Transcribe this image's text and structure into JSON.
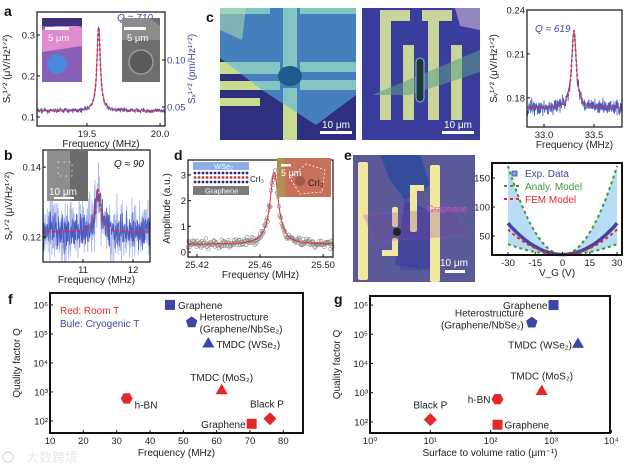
{
  "panel_letters": [
    "a",
    "b",
    "c",
    "d",
    "e",
    "f",
    "g"
  ],
  "insets": {
    "a_left_scale": "5 μm",
    "a_right_scale": "5 μm",
    "b_scale": "10 μm",
    "c_left_scale": "10 μm",
    "c_mid_scale": "10 μm",
    "d_schematic_top": "WSe₂",
    "d_schematic_mid": "CrI₃",
    "d_schematic_bottom": "Graphene",
    "d_photo_scale": "5 μm",
    "d_photo_label": "CrI₃",
    "e_graphene": "Graphene",
    "e_mos2": "MoS₂",
    "e_scale": "10 μm"
  },
  "legend_f": {
    "red": "Red: Room T",
    "blue": "Bule: Cryogenic T"
  },
  "legend_e": [
    "Exp. Data",
    "Analy. Model",
    "FEM Model"
  ],
  "colors": {
    "blue": "#3b47a3",
    "red": "#e2282b",
    "fit": "#e0303a",
    "green": "#3a9a3a",
    "shade": "#a6d3f2",
    "noise": "#4a5cc4"
  },
  "watermark": "大数跨境",
  "chart_data": [
    {
      "panel": "a",
      "type": "line",
      "xlim": [
        19.158,
        20.034
      ],
      "ylim": [
        0.078,
        0.356
      ],
      "xticks": [
        19.5,
        20.0
      ],
      "xticklabels": [
        "19.5",
        "20.0"
      ],
      "yticks": [
        0.1,
        0.2,
        0.3
      ],
      "yticklabels": [
        "0.1",
        "0.2",
        "0.3"
      ],
      "y2lim": [
        0.0298,
        0.151
      ],
      "y2ticks": [
        0.05,
        0.1
      ],
      "y2ticklabels": [
        "0.05",
        "0.10"
      ],
      "xlabel": "Frequency (MHz)",
      "ylabel": "Sᵥ¹ᐟ² (μV/Hz¹ᐟ²)",
      "y2label": "Sₓ¹ᐟ² (pm/Hz¹ᐟ²)",
      "annotation": "Q = 710",
      "resonance": {
        "center": 19.58,
        "fwhm": 0.0276,
        "baseline": 0.115,
        "peak": 0.32,
        "noise": 0.003
      }
    },
    {
      "panel": "c",
      "type": "line",
      "xlim": [
        32.83,
        33.78
      ],
      "ylim": [
        0.16,
        0.24
      ],
      "xticks": [
        33.0,
        33.5
      ],
      "xticklabels": [
        "33.0",
        "33.5"
      ],
      "yticks": [
        0.18,
        0.21,
        0.24
      ],
      "yticklabels": [
        "0.18",
        "0.21",
        "0.24"
      ],
      "xlabel": "Frequency (MHz)",
      "ylabel": "Sᵥ¹ᐟ² (μV/Hz¹ᐟ²)",
      "annotation": "Q ≈ 619",
      "resonance": {
        "center": 33.3,
        "fwhm": 0.054,
        "baseline": 0.173,
        "peak": 0.226,
        "noise": 0.0025
      }
    },
    {
      "panel": "b",
      "type": "line",
      "xlim": [
        10.2,
        12.34
      ],
      "ylim": [
        0.1129,
        0.1449
      ],
      "xticks": [
        11,
        12
      ],
      "xticklabels": [
        "11",
        "12"
      ],
      "yticks": [
        0.12,
        0.14
      ],
      "yticklabels": [
        "0.12",
        "0.14"
      ],
      "xlabel": "Frequency (MHz)",
      "ylabel": "Sᵥ¹ᐟ² (μV/Hz¹ᐟ²)",
      "annotation": "Q ≈ 90",
      "resonance": {
        "center": 11.3,
        "fwhm": 0.125,
        "baseline": 0.1215,
        "peak": 0.1335,
        "noise": 0.0025
      }
    },
    {
      "panel": "d",
      "type": "scatter",
      "xlim": [
        25.4143,
        25.5063
      ],
      "ylim": [
        -0.19,
        3.58
      ],
      "xticks": [
        25.42,
        25.46,
        25.5
      ],
      "xticklabels": [
        "25.42",
        "25.46",
        "25.50"
      ],
      "yticks": [
        0,
        1,
        2,
        3
      ],
      "yticklabels": [
        "0",
        "1",
        "2",
        "3"
      ],
      "xlabel": "Frequency (MHz)",
      "ylabel": "Amplitude (a.u.)",
      "resonance": {
        "center": 25.469,
        "fwhm": 0.0065,
        "baseline": 0.3,
        "peak": 3.1,
        "noise": 0.12
      }
    },
    {
      "panel": "e",
      "type": "line",
      "xlim": [
        -38.8,
        32.7
      ],
      "ylim": [
        17.2,
        175.9
      ],
      "xticks": [
        -30,
        -15,
        0,
        15,
        30
      ],
      "xticklabels": [
        "-30",
        "-15",
        "0",
        "15",
        "30"
      ],
      "yticks": [
        50,
        100,
        150
      ],
      "yticklabels": [
        "50",
        "100",
        "150"
      ],
      "xlabel": "V_G (V)",
      "ylabel": "Frequency (MHz)",
      "series": [
        {
          "name": "Exp. Data",
          "f0": 18,
          "k": 0.06
        },
        {
          "name": "Analy. Model upper",
          "f0": 18,
          "k": 0.17
        },
        {
          "name": "Analy. Model lower",
          "f0": 18,
          "k": 0.02
        },
        {
          "name": "FEM Model",
          "f0": 18,
          "k": 0.048
        }
      ]
    },
    {
      "panel": "f",
      "type": "scatter",
      "xscale": "linear",
      "yscale": "log",
      "xlim": [
        10,
        85.9
      ],
      "ylim": [
        38.5,
        2570000
      ],
      "xticks": [
        10,
        20,
        30,
        40,
        50,
        60,
        70,
        80
      ],
      "xticklabels": [
        "10",
        "20",
        "30",
        "40",
        "50",
        "60",
        "70",
        "80"
      ],
      "yticks": [
        100,
        1000,
        10000,
        100000,
        1000000
      ],
      "yticklabels": [
        "10²",
        "10³",
        "10⁴",
        "10⁵",
        "10⁶"
      ],
      "xlabel": "Frequency (MHz)",
      "ylabel": "Quality factor Q",
      "points": [
        {
          "label": "Graphene",
          "x": 46,
          "y": 1000000,
          "marker": "square",
          "color": "blue"
        },
        {
          "label": "Heterostructure",
          "label2": "(Graphene/NbSe₂)",
          "x": 52.5,
          "y": 250000,
          "marker": "pentagon",
          "color": "blue"
        },
        {
          "label": "TMDC (WSe₂)",
          "x": 57.5,
          "y": 45000,
          "marker": "triangle",
          "color": "blue"
        },
        {
          "label": "TMDC (MoS₂)",
          "x": 61.5,
          "y": 1100,
          "marker": "triangle",
          "color": "red"
        },
        {
          "label": "h-BN",
          "x": 33,
          "y": 600,
          "marker": "hexagon",
          "color": "red"
        },
        {
          "label": "Black P",
          "x": 76,
          "y": 120,
          "marker": "diamond",
          "color": "red"
        },
        {
          "label": "Graphene",
          "x": 70.5,
          "y": 80,
          "marker": "square",
          "color": "red"
        }
      ]
    },
    {
      "panel": "g",
      "type": "scatter",
      "xscale": "log",
      "yscale": "log",
      "xlim": [
        1,
        9500
      ],
      "ylim": [
        41.7,
        2040000
      ],
      "xticks": [
        1,
        10,
        100,
        1000,
        10000
      ],
      "xticklabels": [
        "10⁰",
        "10¹",
        "10²",
        "10³",
        "10⁴"
      ],
      "yticks": [
        100,
        1000,
        10000,
        100000,
        1000000
      ],
      "yticklabels": [
        "10²",
        "10³",
        "10⁴",
        "10⁵",
        "10⁶"
      ],
      "xlabel": "Surface to volume ratio (μm⁻¹)",
      "ylabel": "Quality factor Q",
      "points": [
        {
          "label": "Graphene",
          "x": 1100,
          "y": 1000000,
          "marker": "square",
          "color": "blue"
        },
        {
          "label": "Heterostructure",
          "label2": "(Graphene/NbSe₂)",
          "x": 480,
          "y": 250000,
          "marker": "pentagon",
          "color": "blue"
        },
        {
          "label": "TMDC (WSe₂)",
          "x": 2800,
          "y": 45000,
          "marker": "triangle",
          "color": "blue"
        },
        {
          "label": "TMDC (MoS₂)",
          "x": 700,
          "y": 1100,
          "marker": "triangle",
          "color": "red"
        },
        {
          "label": "h-BN",
          "x": 130,
          "y": 600,
          "marker": "hexagon",
          "color": "red"
        },
        {
          "label": "Black P",
          "x": 10,
          "y": 120,
          "marker": "diamond",
          "color": "red"
        },
        {
          "label": "Graphene",
          "x": 130,
          "y": 80,
          "marker": "square",
          "color": "red"
        }
      ]
    }
  ]
}
